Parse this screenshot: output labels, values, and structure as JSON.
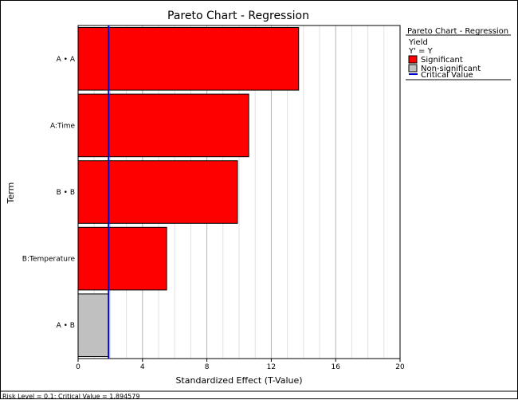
{
  "chart_data": {
    "type": "bar",
    "orientation": "horizontal",
    "title": "Pareto Chart - Regression",
    "xlabel": "Standardized Effect (T-Value)",
    "ylabel": "Term",
    "xlim": [
      0,
      20
    ],
    "x_ticks": [
      0,
      4,
      8,
      12,
      16,
      20
    ],
    "grid": true,
    "categories": [
      "A • A",
      "A:Time",
      "B • B",
      "B:Temperature",
      "A • B"
    ],
    "values": [
      13.7,
      10.6,
      9.9,
      5.5,
      1.9
    ],
    "significant": [
      true,
      true,
      true,
      true,
      false
    ],
    "critical_value": 1.894579,
    "colors": {
      "significant": "#ff0000",
      "non_significant": "#c0c0c0",
      "critical_line": "#0000cc",
      "grid": "#b4b4b4",
      "grid_minor": "#e0e0e0"
    },
    "legend": {
      "title": "Pareto Chart - Regression",
      "line1": "Yield",
      "line2": "Y' = Y",
      "items": [
        "Significant",
        "Non-significant",
        "Critical Value"
      ],
      "placement": "right"
    },
    "footer": "Risk Level = 0.1; Critical Value = 1.894579"
  }
}
